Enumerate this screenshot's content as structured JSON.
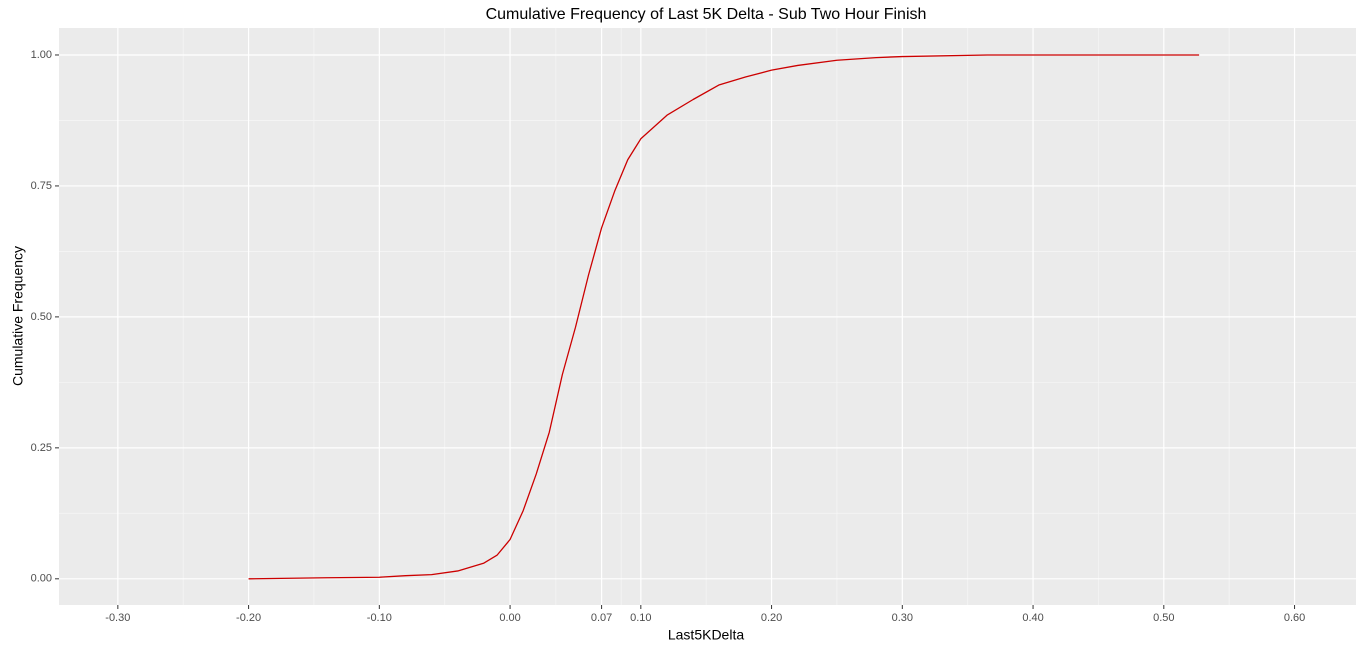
{
  "chart_data": {
    "type": "line",
    "title": "Cumulative Frequency of Last 5K Delta - Sub Two Hour Finish",
    "x_label": "Last5KDelta",
    "y_label": "Cumulative Frequency",
    "grid": true,
    "minor_grid": true,
    "xlim": [
      -0.345,
      0.647
    ],
    "ylim": [
      -0.05,
      1.0515
    ],
    "xticks": [
      {
        "value": -0.3,
        "label": "-0.30"
      },
      {
        "value": -0.2,
        "label": "-0.20"
      },
      {
        "value": -0.1,
        "label": "-0.10"
      },
      {
        "value": 0,
        "label": "0.00"
      },
      0.07,
      {
        "value": 0.1,
        "label": "0.10"
      },
      {
        "value": 0.2,
        "label": "0.20"
      },
      {
        "value": 0.3,
        "label": "0.30"
      },
      {
        "value": 0.4,
        "label": "0.40"
      },
      {
        "value": 0.5,
        "label": "0.50"
      },
      {
        "value": 0.6,
        "label": "0.60"
      }
    ],
    "yticks": [
      {
        "value": 0,
        "label": "0.00"
      },
      {
        "value": 0.25,
        "label": "0.25"
      },
      {
        "value": 0.5,
        "label": "0.50"
      },
      {
        "value": 0.75,
        "label": "0.75"
      },
      {
        "value": 1,
        "label": "1.00"
      }
    ],
    "series": [
      {
        "name": "Last5KDelta",
        "color": "#cc0000",
        "x": [
          -0.2,
          -0.14,
          -0.1,
          -0.08,
          -0.06,
          -0.04,
          -0.02,
          -0.01,
          0,
          0.01,
          0.02,
          0.03,
          0.04,
          0.05,
          0.06,
          0.07,
          0.08,
          0.09,
          0.1,
          0.12,
          0.14,
          0.16,
          0.18,
          0.2,
          0.22,
          0.25,
          0.28,
          0.3,
          0.365,
          0.527
        ],
        "values": [
          0,
          0.002,
          0.003,
          0.006,
          0.008,
          0.015,
          0.03,
          0.045,
          0.075,
          0.13,
          0.2,
          0.28,
          0.39,
          0.48,
          0.58,
          0.67,
          0.74,
          0.8,
          0.84,
          0.885,
          0.915,
          0.943,
          0.958,
          0.971,
          0.98,
          0.99,
          0.995,
          0.997,
          1.0,
          1.0
        ]
      }
    ]
  }
}
